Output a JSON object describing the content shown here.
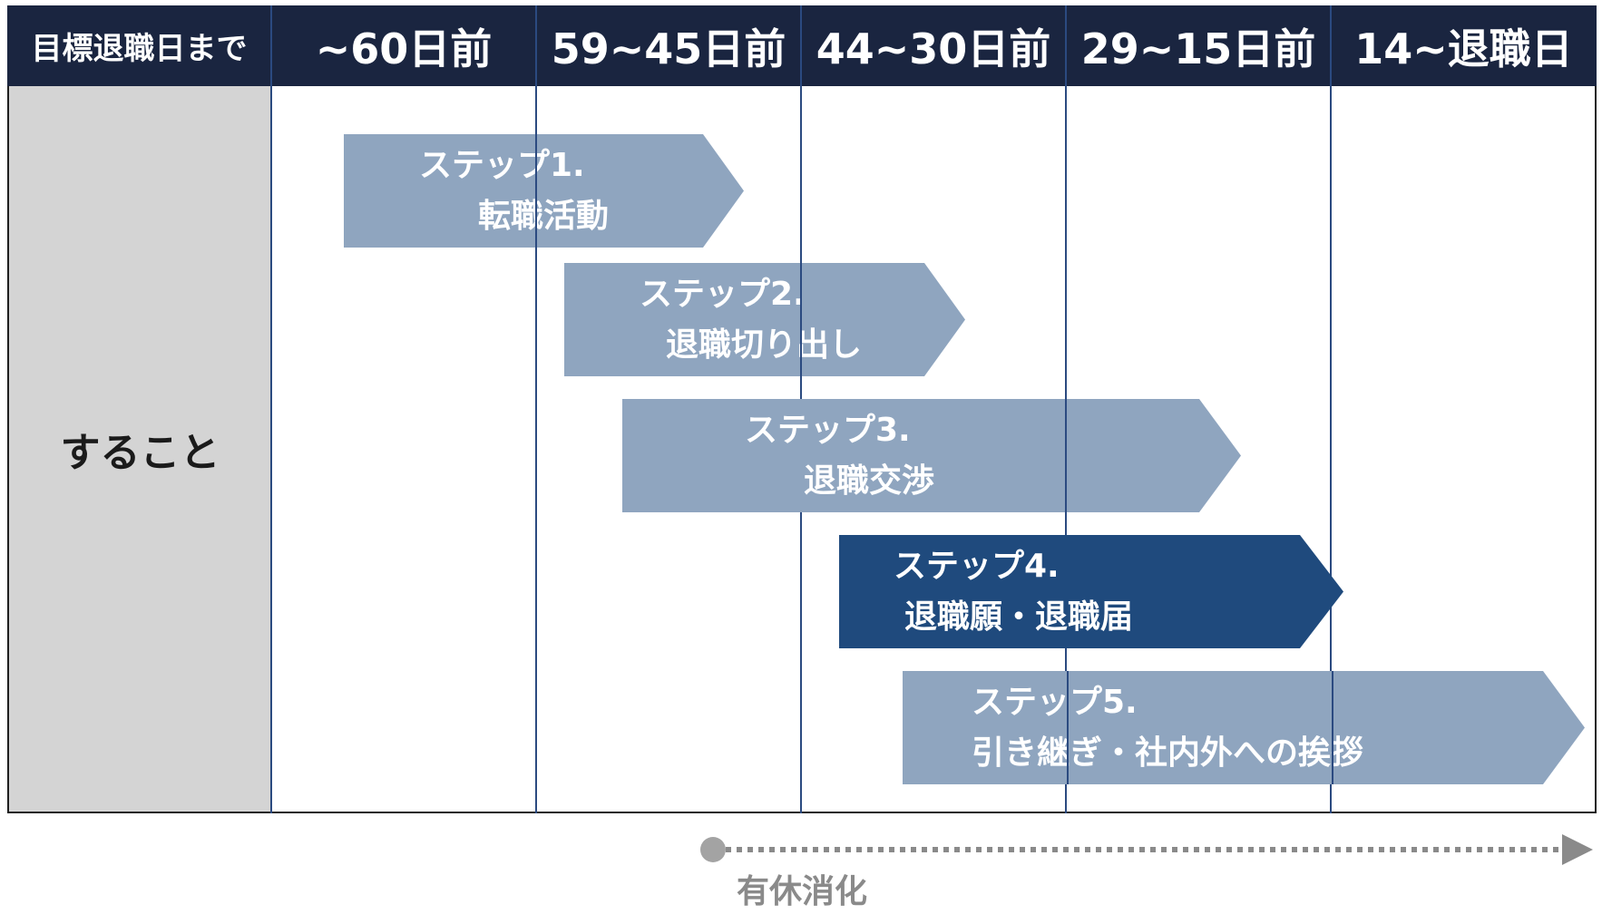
{
  "header": {
    "row_label": "目標退職日まで",
    "columns": [
      "~60日前",
      "59~45日前",
      "44~30日前",
      "29~15日前",
      "14~退職日"
    ]
  },
  "body": {
    "row_label": "すること"
  },
  "steps": [
    {
      "title": "ステップ1.",
      "desc": "転職活動",
      "highlight": false
    },
    {
      "title": "ステップ2.",
      "desc": "退職切り出し",
      "highlight": false
    },
    {
      "title": "ステップ3.",
      "desc": "退職交渉",
      "highlight": false
    },
    {
      "title": "ステップ4.",
      "desc": "退職願・退職届",
      "highlight": true
    },
    {
      "title": "ステップ5.",
      "desc": "引き継ぎ・社内外への挨拶",
      "highlight": false
    }
  ],
  "pto": {
    "label": "有休消化"
  },
  "colors": {
    "header_bg": "#1a2540",
    "step_light": "#8fa5bf",
    "step_dark": "#1f4a7d",
    "grid_line": "#2b4a80",
    "row_label_bg": "#d4d4d4",
    "pto_gray": "#8a8a8a"
  }
}
